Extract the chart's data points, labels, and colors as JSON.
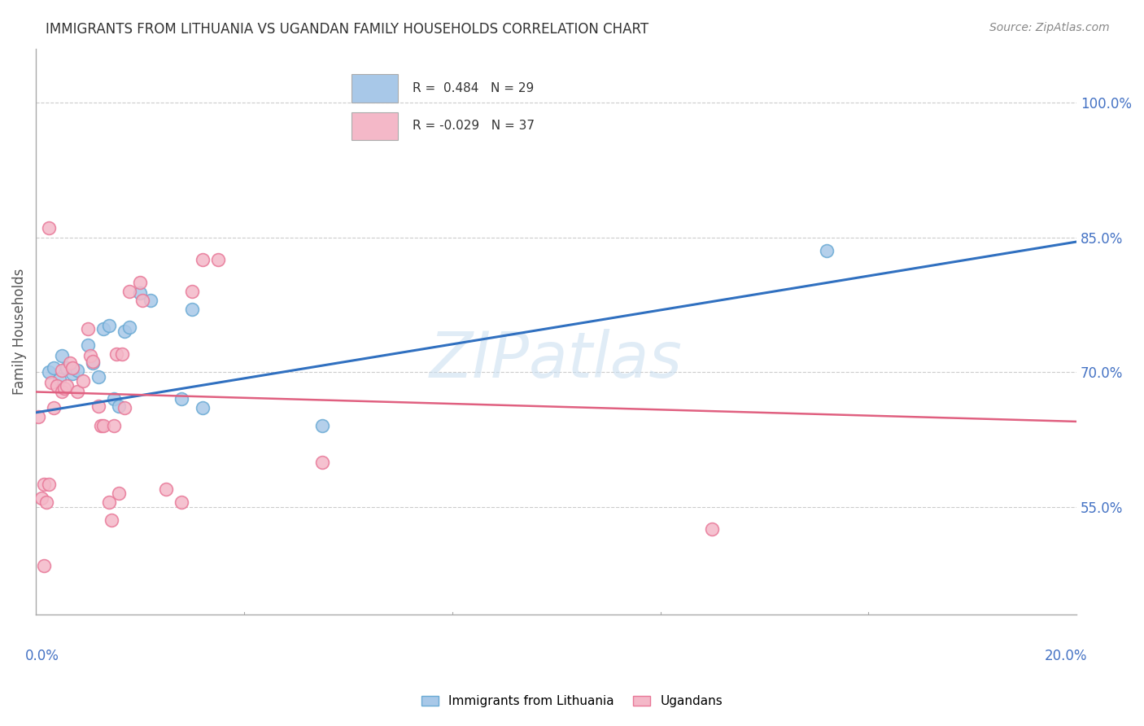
{
  "title": "IMMIGRANTS FROM LITHUANIA VS UGANDAN FAMILY HOUSEHOLDS CORRELATION CHART",
  "source": "Source: ZipAtlas.com",
  "ylabel": "Family Households",
  "yticks": [
    55.0,
    70.0,
    85.0,
    100.0
  ],
  "ylim": [
    43.0,
    106.0
  ],
  "xlim": [
    0.0,
    20.0
  ],
  "watermark": "ZIPatlas",
  "blue_color": "#a8c8e8",
  "blue_edge_color": "#6aaad4",
  "pink_color": "#f4b8c8",
  "pink_edge_color": "#e87898",
  "blue_line_color": "#3070c0",
  "pink_line_color": "#e06080",
  "scatter_blue": [
    [
      0.25,
      70.0
    ],
    [
      0.35,
      70.5
    ],
    [
      0.45,
      69.2
    ],
    [
      0.5,
      71.8
    ],
    [
      0.6,
      70.5
    ],
    [
      0.7,
      69.8
    ],
    [
      0.8,
      70.2
    ],
    [
      1.0,
      73.0
    ],
    [
      1.1,
      71.0
    ],
    [
      1.2,
      69.5
    ],
    [
      1.3,
      74.8
    ],
    [
      1.4,
      75.2
    ],
    [
      1.5,
      67.0
    ],
    [
      1.6,
      66.2
    ],
    [
      1.7,
      74.5
    ],
    [
      1.8,
      75.0
    ],
    [
      2.0,
      78.8
    ],
    [
      2.2,
      78.0
    ],
    [
      2.8,
      67.0
    ],
    [
      3.0,
      77.0
    ],
    [
      3.2,
      66.0
    ],
    [
      5.5,
      64.0
    ],
    [
      15.2,
      83.5
    ]
  ],
  "scatter_pink": [
    [
      0.05,
      65.0
    ],
    [
      0.1,
      56.0
    ],
    [
      0.15,
      57.5
    ],
    [
      0.2,
      55.5
    ],
    [
      0.25,
      57.5
    ],
    [
      0.3,
      68.8
    ],
    [
      0.35,
      66.0
    ],
    [
      0.4,
      68.5
    ],
    [
      0.5,
      70.2
    ],
    [
      0.5,
      67.8
    ],
    [
      0.55,
      68.2
    ],
    [
      0.6,
      68.5
    ],
    [
      0.65,
      71.0
    ],
    [
      0.7,
      70.5
    ],
    [
      0.8,
      67.8
    ],
    [
      0.9,
      69.0
    ],
    [
      1.0,
      74.8
    ],
    [
      1.05,
      71.8
    ],
    [
      1.1,
      71.2
    ],
    [
      1.2,
      66.2
    ],
    [
      1.25,
      64.0
    ],
    [
      1.3,
      64.0
    ],
    [
      1.4,
      55.5
    ],
    [
      1.45,
      53.5
    ],
    [
      1.5,
      64.0
    ],
    [
      1.55,
      72.0
    ],
    [
      1.6,
      56.5
    ],
    [
      1.65,
      72.0
    ],
    [
      1.7,
      66.0
    ],
    [
      1.8,
      79.0
    ],
    [
      2.0,
      80.0
    ],
    [
      2.05,
      78.0
    ],
    [
      2.5,
      57.0
    ],
    [
      2.8,
      55.5
    ],
    [
      3.0,
      79.0
    ],
    [
      3.2,
      82.5
    ],
    [
      3.5,
      82.5
    ],
    [
      5.5,
      60.0
    ],
    [
      13.0,
      52.5
    ],
    [
      0.15,
      48.5
    ],
    [
      0.25,
      86.0
    ]
  ],
  "blue_line_x": [
    0.0,
    20.0
  ],
  "blue_line_y": [
    65.5,
    84.5
  ],
  "pink_line_x": [
    0.0,
    20.0
  ],
  "pink_line_y": [
    67.8,
    64.5
  ]
}
